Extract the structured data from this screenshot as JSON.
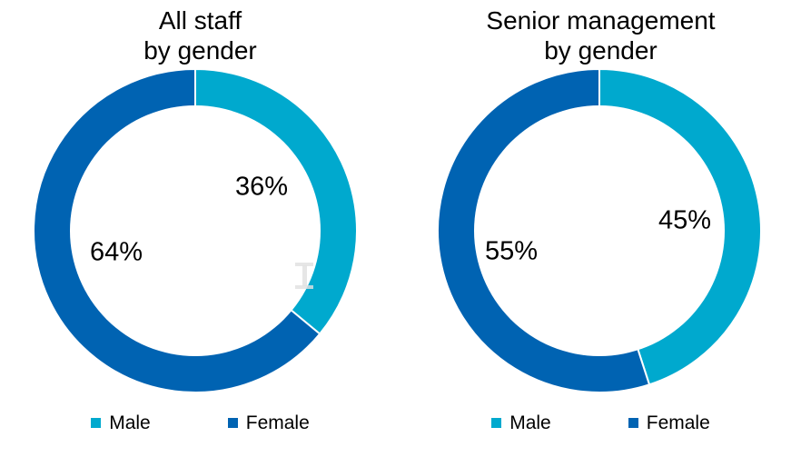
{
  "background": "#ffffff",
  "chart_data": [
    {
      "type": "pie",
      "subtype": "donut",
      "title": "All staff\nby gender",
      "categories": [
        "Male",
        "Female"
      ],
      "values": [
        36,
        64
      ],
      "labels": [
        "36%",
        "64%"
      ],
      "colors": [
        "#00A9CE",
        "#0063B2"
      ],
      "slice_separator_color": "#ffffff",
      "legend_position": "bottom",
      "label_position": "inside-hole"
    },
    {
      "type": "pie",
      "subtype": "donut",
      "title": "Senior management\nby gender",
      "categories": [
        "Male",
        "Female"
      ],
      "values": [
        45,
        55
      ],
      "labels": [
        "45%",
        "55%"
      ],
      "colors": [
        "#00A9CE",
        "#0063B2"
      ],
      "slice_separator_color": "#ffffff",
      "legend_position": "bottom",
      "label_position": "inside-hole"
    }
  ],
  "artifacts": {
    "text_cursor_icon": "i-beam"
  }
}
